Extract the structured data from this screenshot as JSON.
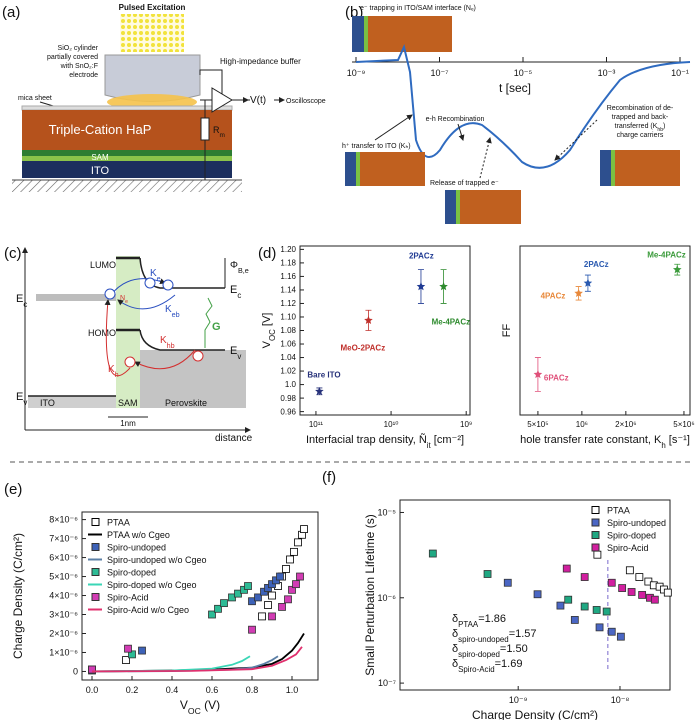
{
  "diagrams": {
    "a": {
      "label": "(a)",
      "excitation": "Pulsed Excitation",
      "cylinder": [
        "SiO₂ cylinder",
        "partially covered",
        "with SnO₂:F",
        "electrode"
      ],
      "mica": "mica sheet",
      "buffer": "High-impedance buffer",
      "output": "V(t)",
      "oscilloscope": "Oscilloscope",
      "resistor": {
        "text": "R",
        "sub": "m"
      },
      "perovskite": "Triple-Cation HaP",
      "sam": "SAM",
      "ito": "ITO"
    },
    "b": {
      "label": "(b)",
      "trapping": "e⁻ trapping in ITO/SAM interface (Nₑ)",
      "time_ticks": [
        "10⁻⁹",
        "10⁻⁷",
        "10⁻⁵",
        "10⁻³",
        "10⁻¹"
      ],
      "time_label": "t [sec]",
      "recombination": "e-h Recombination",
      "hole_transfer": "h⁺ transfer to ITO (Kₕ)",
      "release": "Release of trapped e⁻",
      "back_transfer": [
        "Recombination of de-",
        "trapped and back-",
        {
          "text": "transferred (K",
          "sub": "hb",
          "post": ")"
        },
        "charge carriers"
      ]
    },
    "c": {
      "label": "(c)",
      "lumo": "LUMO",
      "homo": "HOMO",
      "ec_left": {
        "text": "E",
        "sub": "c"
      },
      "ev_left": {
        "text": "E",
        "sub": "v"
      },
      "ec_right": {
        "text": "E",
        "sub": "c"
      },
      "ev_right": {
        "text": "E",
        "sub": "v"
      },
      "barrier": {
        "text": "Φ",
        "sub": "B,e"
      },
      "ke": {
        "text": "K",
        "sub": "e"
      },
      "keb": {
        "text": "K",
        "sub": "eb"
      },
      "ne": {
        "text": "N",
        "sub": "e"
      },
      "kh": {
        "text": "K",
        "sub": "h"
      },
      "khb": {
        "text": "K",
        "sub": "hb"
      },
      "g": "G",
      "ito": "ITO",
      "sam": "SAM",
      "perovskite": "Perovskite",
      "width": "1nm",
      "distance": "distance"
    }
  },
  "chart_data": [
    {
      "type": "scatter",
      "panel_label": "(d)",
      "marker": "star",
      "point_labels": true,
      "log_x": true,
      "xlabel": {
        "text": "Interfacial trap density, Ñ",
        "sub": "it",
        "post": " [cm⁻²]"
      },
      "ylabel": {
        "text": "V",
        "sub": "OC",
        "post": " [V]"
      },
      "xlim": [
        163000000000.0,
        890000000.0
      ],
      "xticks": [
        {
          "value": 100000000000.0,
          "label": "10¹¹"
        },
        {
          "value": 10000000000.0,
          "label": "10¹⁰"
        },
        {
          "value": 1000000000.0,
          "label": "10⁹"
        }
      ],
      "ylim": [
        0.955,
        1.205
      ],
      "yticks": [
        {
          "value": 1.2,
          "label": "1.20"
        },
        1.18,
        1.16,
        1.14,
        1.12,
        {
          "value": 1.1,
          "label": "1.10"
        },
        1.08,
        1.06,
        1.04,
        1.02,
        {
          "value": 1,
          "label": "1.0"
        },
        0.98,
        0.96
      ],
      "series": [
        {
          "name": "Bare ITO",
          "color": "#27327a",
          "x": [
            90000000000.0
          ],
          "values": [
            0.99
          ],
          "errors": [
            0.005
          ]
        },
        {
          "name": "MeO-2PACz",
          "color": "#c0302b",
          "x": [
            20000000000.0
          ],
          "values": [
            1.095
          ],
          "errors": [
            0.015
          ]
        },
        {
          "name": "2PACz",
          "color": "#1f3a93",
          "x": [
            4000000000.0
          ],
          "values": [
            1.145
          ],
          "errors": [
            0.025
          ]
        },
        {
          "name": "Me-4PACz",
          "color": "#2e8b2e",
          "x": [
            2000000000.0
          ],
          "values": [
            1.145
          ],
          "errors": [
            0.025
          ]
        }
      ]
    },
    {
      "type": "scatter",
      "marker": "star",
      "point_labels": true,
      "log_x": true,
      "xlabel": {
        "text": "hole transfer rate constant, K",
        "sub": "h",
        "post": " [s⁻¹]"
      },
      "ylabel": "FF",
      "xlim": [
        377000.0,
        5500000.0
      ],
      "xticks": [
        {
          "value": 500000.0,
          "label": "5×10⁵"
        },
        {
          "value": 1000000.0,
          "label": "10⁶"
        },
        {
          "value": 2000000.0,
          "label": "2×10⁶"
        },
        {
          "value": 5000000.0,
          "label": "5×10⁶"
        }
      ],
      "ylim": [
        60,
        85
      ],
      "series": [
        {
          "name": "6PACz",
          "color": "#e0507a",
          "x": [
            500000.0
          ],
          "values": [
            66
          ],
          "errors": [
            2.5
          ]
        },
        {
          "name": "4PACz",
          "color": "#e8883a",
          "x": [
            950000.0
          ],
          "values": [
            78
          ],
          "errors": [
            1
          ]
        },
        {
          "name": "2PACz",
          "color": "#2a5ab0",
          "x": [
            1100000.0
          ],
          "values": [
            79.5
          ],
          "errors": [
            1.2
          ]
        },
        {
          "name": "Me-4PACz",
          "color": "#3a9a3a",
          "x": [
            4500000.0
          ],
          "values": [
            81.5
          ],
          "errors": [
            0.8
          ]
        }
      ]
    },
    {
      "type": "scatter",
      "panel_label": "(e)",
      "legend": "upper left",
      "xlabel": {
        "text": "V",
        "sub": "OC",
        "post": " (V)"
      },
      "ylabel": "Charge Density (C/cm²)",
      "xlim": [
        -0.05,
        1.13
      ],
      "xticks": [
        {
          "value": 0,
          "label": "0.0"
        },
        0.2,
        0.4,
        0.6,
        0.8,
        {
          "value": 1,
          "label": "1.0"
        }
      ],
      "ylim": [
        -4.5e-07,
        8.4e-06
      ],
      "yticks": [
        0,
        {
          "value": 1e-06,
          "label": "1×10⁻⁶"
        },
        {
          "value": 2e-06,
          "label": "2×10⁻⁶"
        },
        {
          "value": 3e-06,
          "label": "3×10⁻⁶"
        },
        {
          "value": 4e-06,
          "label": "4×10⁻⁶"
        },
        {
          "value": 5e-06,
          "label": "5×10⁻⁶"
        },
        {
          "value": 6e-06,
          "label": "6×10⁻⁶"
        },
        {
          "value": 7e-06,
          "label": "7×10⁻⁶"
        },
        {
          "value": 8e-06,
          "label": "8×10⁻⁶"
        }
      ],
      "series": [
        {
          "name": "PTAA",
          "color": "#000000",
          "style": "open-square",
          "x": [
            0,
            0.17,
            0.85,
            0.88,
            0.9,
            0.93,
            0.95,
            0.97,
            0.99,
            1.01,
            1.03,
            1.05,
            1.06
          ],
          "values": [
            1e-07,
            6e-07,
            2.9e-06,
            3.5e-06,
            4e-06,
            4.5e-06,
            5e-06,
            5.4e-06,
            5.9e-06,
            6.3e-06,
            6.8e-06,
            7.2e-06,
            7.5e-06
          ]
        },
        {
          "name": "PTAA w/o Cgeo",
          "color": "#000000",
          "style": "line",
          "x": [
            0,
            0.2,
            0.4,
            0.6,
            0.8,
            0.9,
            0.95,
            1,
            1.03,
            1.06
          ],
          "values": [
            0,
            2e-08,
            5e-08,
            1e-07,
            2e-07,
            4e-07,
            6.5e-07,
            1.1e-06,
            1.5e-06,
            2e-06
          ]
        },
        {
          "name": "Spiro-undoped",
          "color": "#3d62b8",
          "style": "square",
          "x": [
            0,
            0.25,
            0.8,
            0.83,
            0.86,
            0.88,
            0.9,
            0.92,
            0.94
          ],
          "values": [
            5e-08,
            1.1e-06,
            3.7e-06,
            3.9e-06,
            4.2e-06,
            4.4e-06,
            4.6e-06,
            4.8e-06,
            5e-06
          ]
        },
        {
          "name": "Spiro-undoped w/o Cgeo",
          "color": "#5b7fa6",
          "style": "line",
          "x": [
            0,
            0.4,
            0.7,
            0.8,
            0.86,
            0.9,
            0.93
          ],
          "values": [
            0,
            2e-08,
            1e-07,
            2e-07,
            4e-07,
            6e-07,
            8e-07
          ]
        },
        {
          "name": "Spiro-doped",
          "color": "#2dbb95",
          "style": "square",
          "x": [
            0,
            0.2,
            0.6,
            0.63,
            0.66,
            0.7,
            0.73,
            0.76,
            0.78
          ],
          "values": [
            1e-07,
            9e-07,
            3e-06,
            3.3e-06,
            3.6e-06,
            3.9e-06,
            4.1e-06,
            4.3e-06,
            4.5e-06
          ]
        },
        {
          "name": "Spiro-doped w/o Cgeo",
          "color": "#3ad6b6",
          "style": "line",
          "x": [
            0,
            0.4,
            0.6,
            0.7,
            0.75,
            0.79
          ],
          "values": [
            0,
            5e-08,
            1.5e-07,
            3.5e-07,
            5.5e-07,
            8e-07
          ]
        },
        {
          "name": "Spiro-Acid",
          "color": "#d23cb4",
          "style": "square",
          "x": [
            0,
            0.18,
            0.8,
            0.9,
            0.95,
            0.98,
            1,
            1.02,
            1.04
          ],
          "values": [
            1e-07,
            1.2e-06,
            2.2e-06,
            2.9e-06,
            3.4e-06,
            3.8e-06,
            4.3e-06,
            4.6e-06,
            5e-06
          ]
        },
        {
          "name": "Spiro-Acid w/o Cgeo",
          "color": "#e0306e",
          "style": "line",
          "x": [
            0,
            0.5,
            0.8,
            0.9,
            0.97,
            1.02,
            1.05
          ],
          "values": [
            0,
            3e-08,
            1.2e-07,
            3e-07,
            6e-07,
            9e-07,
            1.3e-06
          ]
        }
      ]
    },
    {
      "type": "scatter",
      "panel_label": "(f)",
      "legend": "upper right",
      "log_x": true,
      "log_y": true,
      "xlabel": "Charge Density (C/cm²)",
      "ylabel": "Small Perturbation Lifetime (s)",
      "xlim": [
        6.9e-11,
        3.1e-08
      ],
      "xticks": [
        {
          "value": 1e-09,
          "label": "10⁻⁹"
        },
        {
          "value": 1e-08,
          "label": "10⁻⁸"
        }
      ],
      "ylim": [
        8.3e-08,
        1.4e-05
      ],
      "yticks": [
        {
          "value": 1e-07,
          "label": "10⁻⁷"
        },
        {
          "value": 1e-06,
          "label": "10⁻⁶"
        },
        {
          "value": 1e-05,
          "label": "10⁻⁵"
        }
      ],
      "reference_x": 7.6e-09,
      "reference_color": "#7a6acc",
      "series": [
        {
          "name": "PTAA",
          "color": "#000000",
          "style": "open-square",
          "x": [
            6e-09,
            1.25e-08,
            1.55e-08,
            1.9e-08,
            2.15e-08,
            2.45e-08,
            2.7e-08,
            2.95e-08
          ],
          "values": [
            3.2e-06,
            2.1e-06,
            1.75e-06,
            1.55e-06,
            1.4e-06,
            1.35e-06,
            1.25e-06,
            1.15e-06
          ]
        },
        {
          "name": "Spiro-undoped",
          "color": "#4a66c4",
          "style": "square",
          "x": [
            7.9e-10,
            1.55e-09,
            2.6e-09,
            3.6e-09,
            6.3e-09,
            8.3e-09,
            1.02e-08
          ],
          "values": [
            1.5e-06,
            1.1e-06,
            8.1e-07,
            5.5e-07,
            4.5e-07,
            4e-07,
            3.5e-07
          ]
        },
        {
          "name": "Spiro-doped",
          "color": "#1fa882",
          "style": "square",
          "x": [
            1.45e-10,
            5e-10,
            3.1e-09,
            4.5e-09,
            5.9e-09,
            7.4e-09
          ],
          "values": [
            3.3e-06,
            1.9e-06,
            9.5e-07,
            7.9e-07,
            7.2e-07,
            6.9e-07
          ]
        },
        {
          "name": "Spiro-Acid",
          "color": "#d11f9f",
          "style": "square",
          "x": [
            3e-09,
            4.5e-09,
            8.3e-09,
            1.05e-08,
            1.3e-08,
            1.65e-08,
            1.97e-08,
            2.2e-08
          ],
          "values": [
            2.2e-06,
            1.75e-06,
            1.5e-06,
            1.3e-06,
            1.17e-06,
            1.08e-06,
            1e-06,
            9.5e-07
          ]
        }
      ],
      "annotations": [
        {
          "text": "δ",
          "sub": "PTAA",
          "post": "=1.86"
        },
        {
          "text": "δ",
          "sub": "spiro-undoped",
          "post": "=1.57"
        },
        {
          "text": "δ",
          "sub": "spiro-doped",
          "post": "=1.50"
        },
        {
          "text": "δ",
          "sub": "Spiro-Acid",
          "post": "=1.69"
        }
      ]
    }
  ]
}
